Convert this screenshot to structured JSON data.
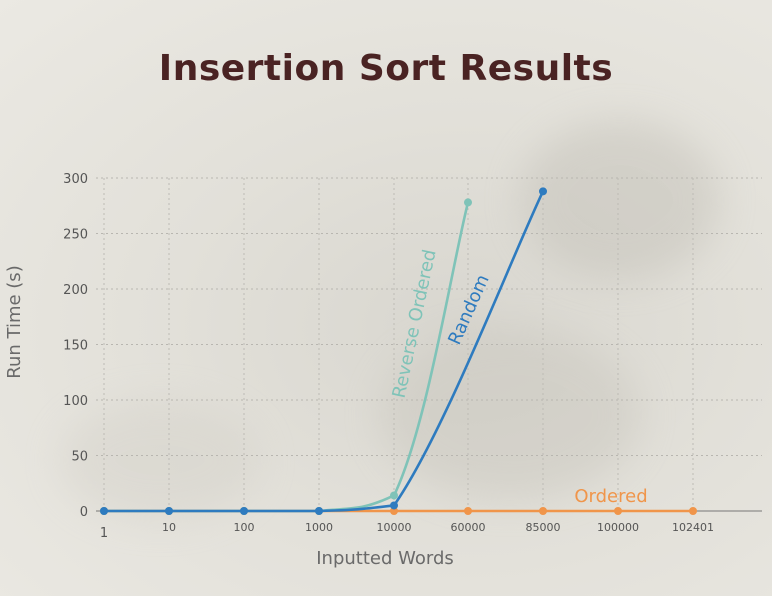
{
  "chart_data": {
    "type": "line",
    "title": "Insertion Sort Results",
    "xlabel": "Inputted Words",
    "ylabel": "Run Time (s)",
    "ylim": [
      0,
      300
    ],
    "y_ticks": [
      "0",
      "50",
      "100",
      "150",
      "200",
      "250",
      "300"
    ],
    "categories": [
      "1",
      "10",
      "100",
      "1000",
      "10000",
      "60000",
      "85000",
      "100000",
      "102401"
    ],
    "grid": true,
    "series": [
      {
        "name": "Reverse Ordered",
        "color": "#7fc3b8",
        "x": [
          "1",
          "10",
          "100",
          "1000",
          "10000",
          "60000"
        ],
        "values": [
          0,
          0,
          0,
          0,
          14,
          278
        ]
      },
      {
        "name": "Random",
        "color": "#2e7bbf",
        "x": [
          "1",
          "10",
          "100",
          "1000",
          "10000",
          "85000"
        ],
        "values": [
          0,
          0,
          0,
          0,
          5,
          288
        ]
      },
      {
        "name": "Ordered",
        "color": "#f0954a",
        "x": [
          "1",
          "10",
          "100",
          "1000",
          "10000",
          "60000",
          "85000",
          "100000",
          "102401"
        ],
        "values": [
          0,
          0,
          0,
          0,
          0,
          0,
          0,
          0,
          0
        ]
      }
    ]
  }
}
